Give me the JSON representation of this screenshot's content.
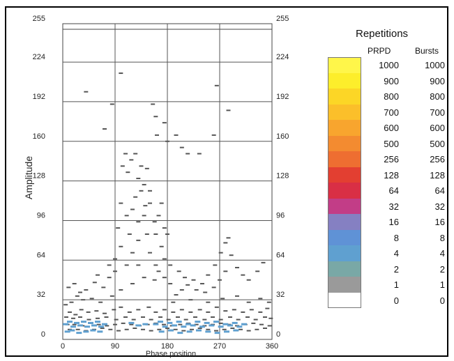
{
  "chart_data": {
    "type": "scatter",
    "title": "",
    "xlabel": "Phase position",
    "ylabel": "Amplitude",
    "xlim": [
      0,
      360
    ],
    "ylim": [
      0,
      255
    ],
    "x_ticks": [
      0,
      90,
      180,
      270,
      360
    ],
    "y_ticks": [
      0,
      32,
      64,
      96,
      128,
      160,
      192,
      224,
      255
    ],
    "grid": true,
    "legend_placement": "right",
    "legend": {
      "title": "Repetitions",
      "columns": [
        "PRPD",
        "Bursts"
      ],
      "levels": [
        {
          "prpd": "1000",
          "bursts": "1000",
          "color": "#fff64a"
        },
        {
          "prpd": "900",
          "bursts": "900",
          "color": "#fdee2b"
        },
        {
          "prpd": "800",
          "bursts": "800",
          "color": "#fcd626"
        },
        {
          "prpd": "700",
          "bursts": "700",
          "color": "#fbbf2a"
        },
        {
          "prpd": "600",
          "bursts": "600",
          "color": "#f8a52e"
        },
        {
          "prpd": "500",
          "bursts": "500",
          "color": "#f38b30"
        },
        {
          "prpd": "256",
          "bursts": "256",
          "color": "#ee6e31"
        },
        {
          "prpd": "128",
          "bursts": "128",
          "color": "#e33f31"
        },
        {
          "prpd": "64",
          "bursts": "64",
          "color": "#d92f45"
        },
        {
          "prpd": "32",
          "bursts": "32",
          "color": "#c23d87"
        },
        {
          "prpd": "16",
          "bursts": "16",
          "color": "#8580c2"
        },
        {
          "prpd": "8",
          "bursts": "8",
          "color": "#5f92d6"
        },
        {
          "prpd": "4",
          "bursts": "4",
          "color": "#5fa0d0"
        },
        {
          "prpd": "2",
          "bursts": "2",
          "color": "#79a8a6"
        },
        {
          "prpd": "1",
          "bursts": "1",
          "color": "#9a9a9a"
        },
        {
          "prpd": "0",
          "bursts": "0",
          "color": "#ffffff"
        }
      ]
    },
    "points": [
      [
        40,
        200
      ],
      [
        72,
        170
      ],
      [
        85,
        190
      ],
      [
        100,
        215
      ],
      [
        103,
        140
      ],
      [
        108,
        150
      ],
      [
        112,
        135
      ],
      [
        118,
        145
      ],
      [
        125,
        150
      ],
      [
        130,
        130
      ],
      [
        135,
        140
      ],
      [
        140,
        125
      ],
      [
        145,
        138
      ],
      [
        150,
        120
      ],
      [
        155,
        190
      ],
      [
        160,
        180
      ],
      [
        162,
        165
      ],
      [
        170,
        110
      ],
      [
        175,
        175
      ],
      [
        180,
        160
      ],
      [
        195,
        165
      ],
      [
        205,
        155
      ],
      [
        215,
        150
      ],
      [
        235,
        150
      ],
      [
        260,
        165
      ],
      [
        265,
        205
      ],
      [
        285,
        185
      ],
      [
        100,
        110
      ],
      [
        110,
        100
      ],
      [
        120,
        105
      ],
      [
        130,
        95
      ],
      [
        140,
        100
      ],
      [
        150,
        110
      ],
      [
        165,
        100
      ],
      [
        175,
        90
      ],
      [
        180,
        85
      ],
      [
        95,
        90
      ],
      [
        115,
        85
      ],
      [
        130,
        80
      ],
      [
        145,
        85
      ],
      [
        160,
        85
      ],
      [
        170,
        75
      ],
      [
        150,
        70
      ],
      [
        160,
        60
      ],
      [
        175,
        65
      ],
      [
        185,
        60
      ],
      [
        200,
        55
      ],
      [
        210,
        50
      ],
      [
        225,
        48
      ],
      [
        240,
        45
      ],
      [
        250,
        52
      ],
      [
        262,
        60
      ],
      [
        272,
        70
      ],
      [
        280,
        78
      ],
      [
        290,
        68
      ],
      [
        300,
        58
      ],
      [
        310,
        52
      ],
      [
        320,
        48
      ],
      [
        335,
        55
      ],
      [
        345,
        62
      ],
      [
        285,
        82
      ],
      [
        270,
        48
      ],
      [
        280,
        55
      ],
      [
        260,
        42
      ],
      [
        245,
        38
      ],
      [
        230,
        40
      ],
      [
        215,
        44
      ],
      [
        205,
        40
      ],
      [
        195,
        36
      ],
      [
        185,
        45
      ],
      [
        10,
        42
      ],
      [
        20,
        45
      ],
      [
        30,
        38
      ],
      [
        40,
        40
      ],
      [
        55,
        46
      ],
      [
        70,
        42
      ],
      [
        80,
        50
      ],
      [
        90,
        55
      ],
      [
        60,
        52
      ],
      [
        25,
        35
      ],
      [
        15,
        30
      ],
      [
        35,
        32
      ],
      [
        50,
        33
      ],
      [
        65,
        30
      ],
      [
        85,
        35
      ],
      [
        100,
        40
      ],
      [
        120,
        45
      ],
      [
        140,
        50
      ],
      [
        158,
        48
      ],
      [
        165,
        55
      ],
      [
        175,
        50
      ],
      [
        190,
        30
      ],
      [
        220,
        32
      ],
      [
        250,
        30
      ],
      [
        275,
        33
      ],
      [
        300,
        35
      ],
      [
        320,
        30
      ],
      [
        340,
        33
      ],
      [
        355,
        30
      ],
      [
        5,
        28
      ],
      [
        12,
        22
      ],
      [
        22,
        20
      ],
      [
        32,
        24
      ],
      [
        44,
        22
      ],
      [
        58,
        23
      ],
      [
        72,
        21
      ],
      [
        88,
        24
      ],
      [
        100,
        26
      ],
      [
        115,
        22
      ],
      [
        130,
        24
      ],
      [
        148,
        26
      ],
      [
        160,
        22
      ],
      [
        175,
        24
      ],
      [
        190,
        22
      ],
      [
        205,
        24
      ],
      [
        220,
        22
      ],
      [
        236,
        24
      ],
      [
        250,
        22
      ],
      [
        265,
        26
      ],
      [
        280,
        23
      ],
      [
        295,
        24
      ],
      [
        310,
        22
      ],
      [
        325,
        24
      ],
      [
        340,
        22
      ],
      [
        352,
        25
      ],
      [
        6,
        18
      ],
      [
        18,
        17
      ],
      [
        30,
        18
      ],
      [
        45,
        16
      ],
      [
        60,
        17
      ],
      [
        75,
        18
      ],
      [
        92,
        16
      ],
      [
        108,
        18
      ],
      [
        122,
        16
      ],
      [
        138,
        18
      ],
      [
        152,
        16
      ],
      [
        168,
        18
      ],
      [
        182,
        16
      ],
      [
        198,
        18
      ],
      [
        212,
        16
      ],
      [
        228,
        18
      ],
      [
        244,
        16
      ],
      [
        258,
        18
      ],
      [
        272,
        16
      ],
      [
        288,
        18
      ],
      [
        302,
        16
      ],
      [
        318,
        18
      ],
      [
        332,
        16
      ],
      [
        348,
        18
      ],
      [
        358,
        17
      ],
      [
        8,
        12
      ],
      [
        20,
        12
      ],
      [
        34,
        11
      ],
      [
        48,
        13
      ],
      [
        62,
        12
      ],
      [
        76,
        11
      ],
      [
        90,
        12
      ],
      [
        104,
        13
      ],
      [
        118,
        12
      ],
      [
        132,
        11
      ],
      [
        146,
        12
      ],
      [
        160,
        13
      ],
      [
        174,
        12
      ],
      [
        188,
        11
      ],
      [
        202,
        12
      ],
      [
        216,
        13
      ],
      [
        230,
        12
      ],
      [
        244,
        11
      ],
      [
        258,
        12
      ],
      [
        272,
        13
      ],
      [
        286,
        12
      ],
      [
        300,
        11
      ],
      [
        314,
        12
      ],
      [
        328,
        13
      ],
      [
        342,
        12
      ],
      [
        356,
        11
      ],
      [
        12,
        8
      ],
      [
        26,
        8
      ],
      [
        40,
        7
      ],
      [
        54,
        8
      ],
      [
        68,
        9
      ],
      [
        82,
        8
      ],
      [
        96,
        7
      ],
      [
        110,
        8
      ],
      [
        124,
        9
      ],
      [
        138,
        8
      ],
      [
        152,
        7
      ],
      [
        166,
        8
      ],
      [
        180,
        9
      ],
      [
        194,
        8
      ],
      [
        208,
        7
      ],
      [
        222,
        8
      ],
      [
        236,
        9
      ],
      [
        250,
        8
      ],
      [
        264,
        7
      ],
      [
        278,
        8
      ],
      [
        292,
        9
      ],
      [
        306,
        8
      ],
      [
        320,
        7
      ],
      [
        334,
        8
      ],
      [
        348,
        9
      ],
      [
        110,
        60
      ],
      [
        120,
        70
      ],
      [
        130,
        60
      ],
      [
        90,
        65
      ],
      [
        80,
        60
      ],
      [
        100,
        75
      ],
      [
        125,
        115
      ],
      [
        135,
        120
      ],
      [
        142,
        108
      ],
      [
        158,
        95
      ]
    ],
    "cluster_points": [
      [
        5,
        12
      ],
      [
        12,
        14
      ],
      [
        18,
        10
      ],
      [
        24,
        13
      ],
      [
        30,
        11
      ],
      [
        36,
        14
      ],
      [
        42,
        10
      ],
      [
        48,
        13
      ],
      [
        54,
        11
      ],
      [
        60,
        14
      ],
      [
        66,
        10
      ],
      [
        72,
        12
      ],
      [
        8,
        6
      ],
      [
        16,
        7
      ],
      [
        28,
        5
      ],
      [
        40,
        6
      ],
      [
        52,
        7
      ],
      [
        64,
        6
      ],
      [
        160,
        12
      ],
      [
        168,
        14
      ],
      [
        176,
        10
      ],
      [
        184,
        13
      ],
      [
        192,
        11
      ],
      [
        200,
        14
      ],
      [
        208,
        10
      ],
      [
        216,
        12
      ],
      [
        224,
        11
      ],
      [
        232,
        14
      ],
      [
        240,
        10
      ],
      [
        248,
        13
      ],
      [
        256,
        11
      ],
      [
        264,
        14
      ],
      [
        272,
        10
      ],
      [
        280,
        12
      ],
      [
        288,
        11
      ],
      [
        296,
        13
      ],
      [
        304,
        10
      ],
      [
        312,
        12
      ],
      [
        170,
        6
      ],
      [
        186,
        7
      ],
      [
        202,
        5
      ],
      [
        218,
        6
      ],
      [
        234,
        7
      ],
      [
        250,
        6
      ],
      [
        266,
        5
      ],
      [
        282,
        6
      ],
      [
        298,
        7
      ],
      [
        118,
        13
      ],
      [
        130,
        11
      ],
      [
        142,
        12
      ]
    ]
  }
}
